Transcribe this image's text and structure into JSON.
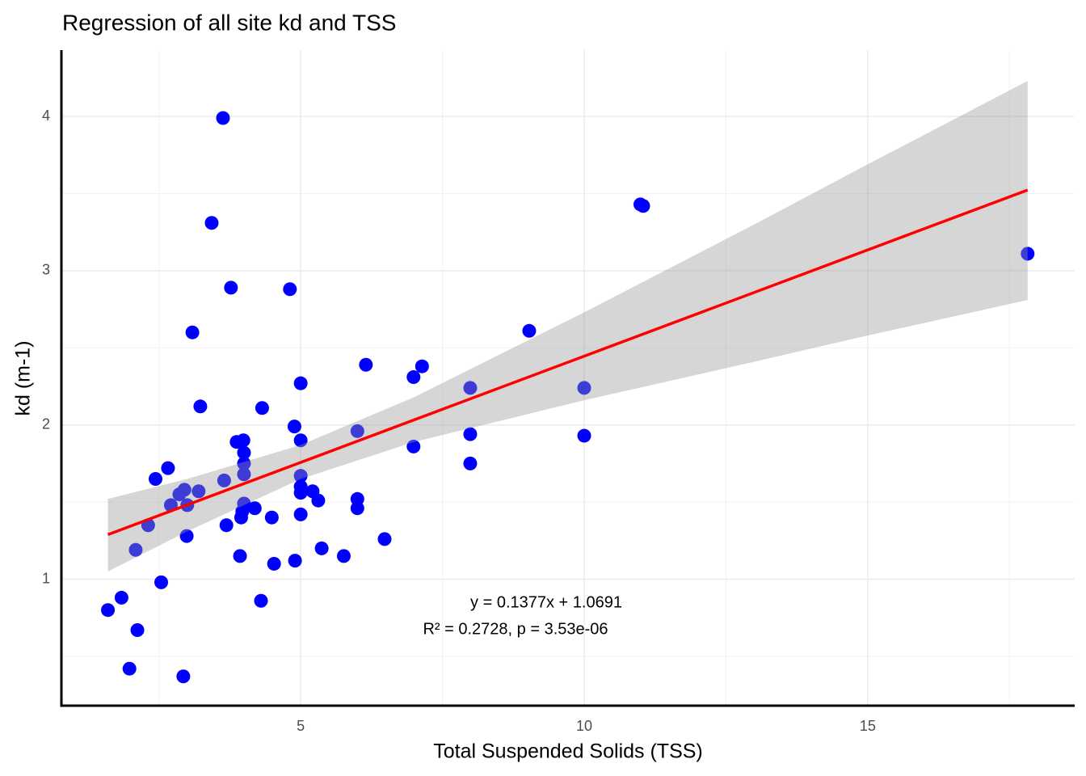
{
  "chart_data": {
    "type": "scatter",
    "title": "Regression of all site kd and TSS",
    "xlabel": "Total Suspended Solids (TSS)",
    "ylabel": "kd (m-1)",
    "x": [
      1.6,
      1.84,
      1.98,
      2.12,
      2.09,
      2.31,
      2.44,
      2.54,
      2.66,
      2.71,
      2.86,
      2.95,
      2.93,
      2.99,
      3.0,
      3.09,
      3.2,
      3.23,
      3.43,
      3.63,
      3.65,
      3.69,
      3.77,
      3.87,
      3.93,
      3.95,
      3.97,
      3.99,
      4.0,
      4.0,
      4.0,
      4.0,
      4.19,
      4.3,
      4.32,
      4.49,
      4.53,
      4.81,
      4.89,
      4.9,
      5.0,
      5.0,
      5.0,
      5.0,
      5.0,
      5.0,
      5.21,
      5.31,
      5.37,
      5.76,
      6.0,
      6.0,
      6.0,
      6.15,
      6.48,
      6.99,
      6.99,
      7.14,
      7.99,
      7.99,
      7.99,
      9.03,
      10.0,
      10.0,
      10.99,
      11.04,
      17.82
    ],
    "values": [
      0.8,
      0.88,
      0.42,
      0.67,
      1.19,
      1.35,
      1.65,
      0.98,
      1.72,
      1.48,
      1.55,
      1.58,
      0.37,
      1.28,
      1.48,
      2.6,
      1.57,
      2.12,
      3.31,
      3.99,
      1.64,
      1.35,
      2.89,
      1.89,
      1.15,
      1.4,
      1.44,
      1.9,
      1.82,
      1.75,
      1.68,
      1.49,
      1.46,
      0.86,
      2.11,
      1.4,
      1.1,
      2.88,
      1.99,
      1.12,
      2.27,
      1.9,
      1.67,
      1.6,
      1.56,
      1.42,
      1.57,
      1.51,
      1.2,
      1.15,
      1.96,
      1.52,
      1.46,
      2.39,
      1.26,
      2.31,
      1.86,
      2.38,
      2.24,
      1.94,
      1.75,
      2.61,
      2.24,
      1.93,
      3.43,
      3.42,
      3.11
    ],
    "color": "#0000ff",
    "fit": {
      "color": "#ff0000",
      "x": [
        1.6,
        17.82
      ],
      "y": [
        1.289,
        3.523
      ]
    },
    "band": {
      "color": "#999999",
      "x": [
        1.6,
        3,
        5,
        7,
        10,
        13,
        15,
        17.82
      ],
      "lower": [
        1.05,
        1.31,
        1.65,
        1.89,
        2.16,
        2.41,
        2.58,
        2.81
      ],
      "upper": [
        1.52,
        1.65,
        1.87,
        2.18,
        2.73,
        3.3,
        3.69,
        4.23
      ]
    },
    "annotations": [
      "y = 0.1377x + 1.0691",
      "R² = 0.2728, p = 3.53e-06"
    ],
    "xlim": [
      0.78,
      18.65
    ],
    "ylim": [
      0.18,
      4.43
    ],
    "xticks": [
      5,
      10,
      15
    ],
    "yticks": [
      1,
      2,
      3,
      4
    ],
    "xminor": [
      2.5,
      7.5,
      12.5,
      17.5
    ],
    "yminor": [
      0.5,
      1.5,
      2.5,
      3.5
    ],
    "grid": true
  }
}
